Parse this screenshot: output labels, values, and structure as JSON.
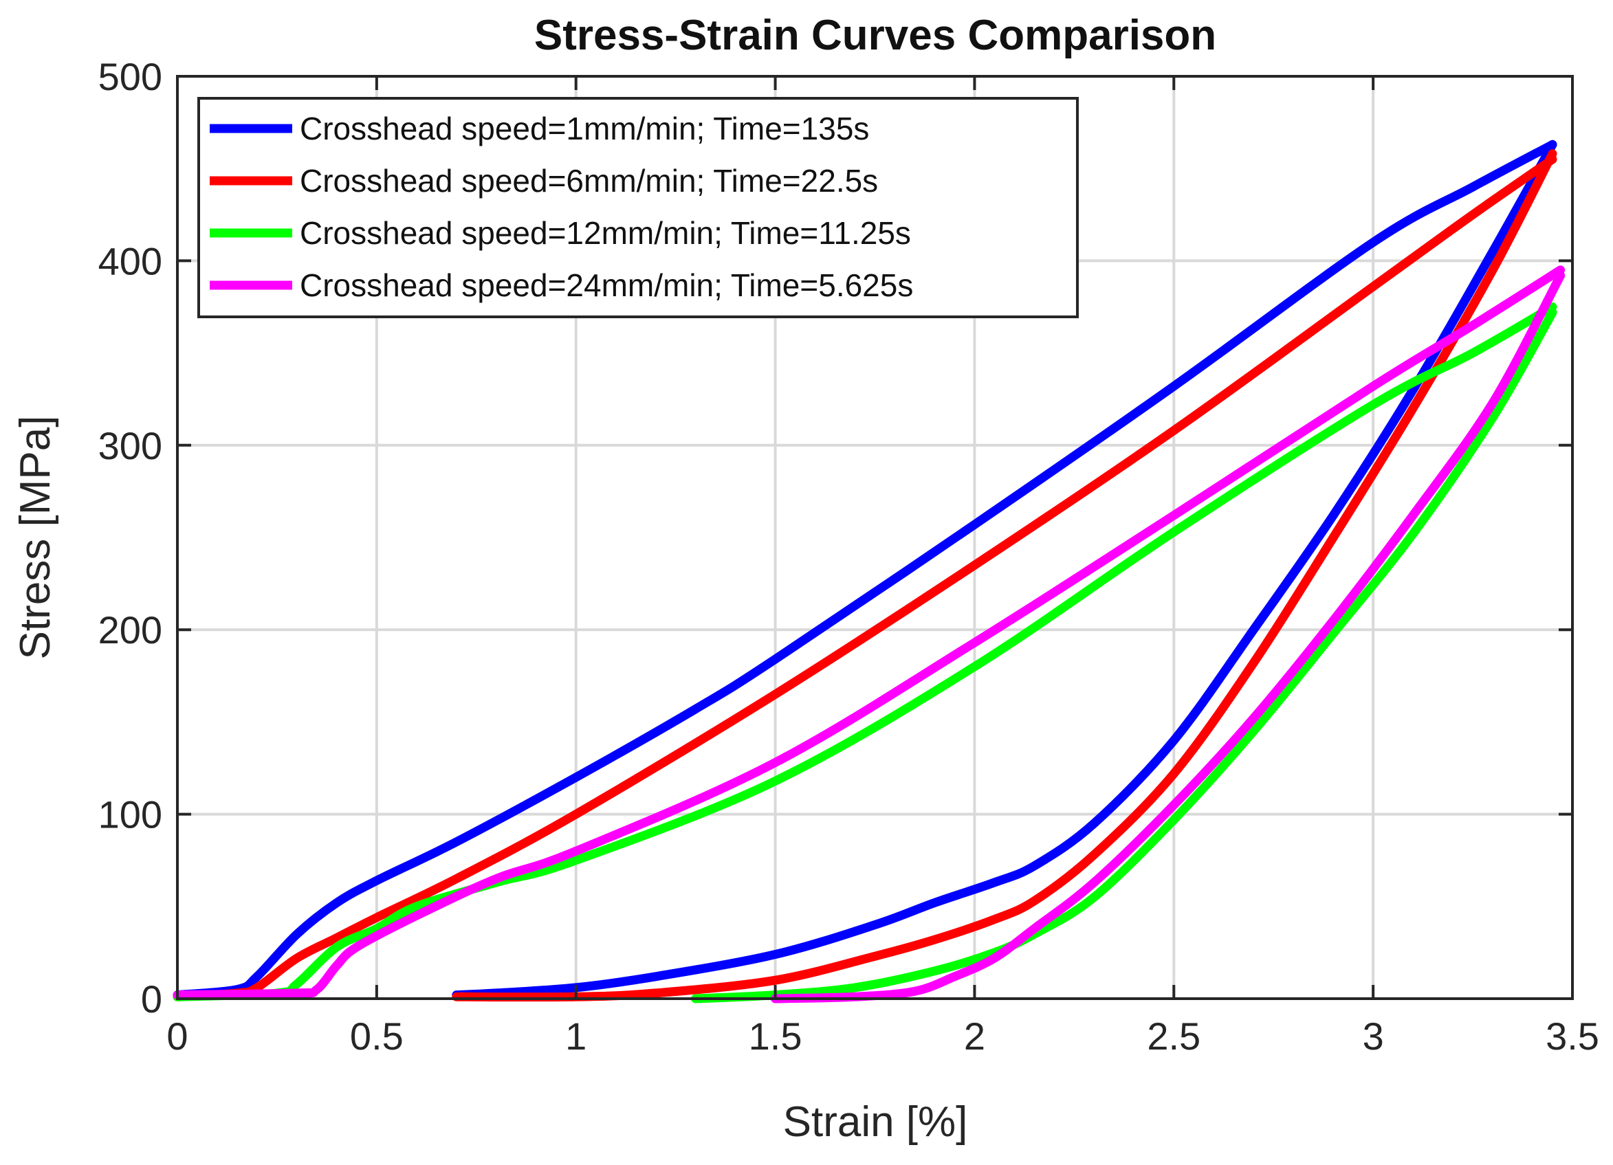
{
  "chart_data": {
    "type": "line",
    "title": "Stress-Strain Curves Comparison",
    "xlabel": "Strain [%]",
    "ylabel": "Stress [MPa]",
    "xlim": [
      0,
      3.5
    ],
    "ylim": [
      0,
      500
    ],
    "xticks": [
      0,
      0.5,
      1,
      1.5,
      2,
      2.5,
      3,
      3.5
    ],
    "xtick_labels": [
      "0",
      "0.5",
      "1",
      "1.5",
      "2",
      "2.5",
      "3",
      "3.5"
    ],
    "yticks": [
      0,
      100,
      200,
      300,
      400,
      500
    ],
    "ytick_labels": [
      "0",
      "100",
      "200",
      "300",
      "400",
      "500"
    ],
    "grid": true,
    "legend_position": "top-left",
    "series": [
      {
        "name": "Crosshead speed=1mm/min; Time=135s",
        "color": "#0000ff",
        "loading": [
          [
            0,
            2
          ],
          [
            0.15,
            5
          ],
          [
            0.2,
            12
          ],
          [
            0.3,
            35
          ],
          [
            0.4,
            52
          ],
          [
            0.5,
            64
          ],
          [
            0.7,
            85
          ],
          [
            1,
            120
          ],
          [
            1.3,
            157
          ],
          [
            1.5,
            184
          ],
          [
            2,
            257
          ],
          [
            2.5,
            332
          ],
          [
            3,
            410
          ],
          [
            3.25,
            440
          ],
          [
            3.45,
            463
          ]
        ],
        "unloading": [
          [
            3.45,
            463
          ],
          [
            3.3,
            405
          ],
          [
            3.1,
            330
          ],
          [
            2.9,
            262
          ],
          [
            2.7,
            200
          ],
          [
            2.5,
            140
          ],
          [
            2.3,
            95
          ],
          [
            2.15,
            72
          ],
          [
            2.05,
            63
          ],
          [
            1.9,
            52
          ],
          [
            1.75,
            40
          ],
          [
            1.5,
            24
          ],
          [
            1.2,
            12
          ],
          [
            1,
            6
          ],
          [
            0.8,
            3
          ],
          [
            0.7,
            2
          ]
        ]
      },
      {
        "name": "Crosshead speed=6mm/min; Time=22.5s",
        "color": "#ff0000",
        "loading": [
          [
            0,
            1
          ],
          [
            0.15,
            3
          ],
          [
            0.2,
            6
          ],
          [
            0.3,
            22
          ],
          [
            0.4,
            33
          ],
          [
            0.5,
            44
          ],
          [
            0.7,
            65
          ],
          [
            1,
            100
          ],
          [
            1.5,
            165
          ],
          [
            2,
            235
          ],
          [
            2.5,
            308
          ],
          [
            3,
            386
          ],
          [
            3.25,
            425
          ],
          [
            3.45,
            455
          ]
        ],
        "unloading": [
          [
            3.45,
            458
          ],
          [
            3.3,
            395
          ],
          [
            3.1,
            320
          ],
          [
            2.9,
            250
          ],
          [
            2.7,
            182
          ],
          [
            2.5,
            122
          ],
          [
            2.3,
            78
          ],
          [
            2.15,
            53
          ],
          [
            2.05,
            43
          ],
          [
            1.9,
            32
          ],
          [
            1.75,
            23
          ],
          [
            1.5,
            10
          ],
          [
            1.2,
            3
          ],
          [
            1,
            1
          ],
          [
            0.7,
            1
          ]
        ]
      },
      {
        "name": "Crosshead speed=12mm/min; Time=11.25s",
        "color": "#00ff00",
        "loading": [
          [
            0,
            1
          ],
          [
            0.25,
            3
          ],
          [
            0.3,
            8
          ],
          [
            0.4,
            28
          ],
          [
            0.5,
            38
          ],
          [
            0.6,
            50
          ],
          [
            0.8,
            63
          ],
          [
            1,
            75
          ],
          [
            1.5,
            118
          ],
          [
            2,
            180
          ],
          [
            2.5,
            253
          ],
          [
            3,
            322
          ],
          [
            3.25,
            350
          ],
          [
            3.45,
            375
          ]
        ],
        "unloading": [
          [
            3.45,
            372
          ],
          [
            3.3,
            315
          ],
          [
            3.1,
            252
          ],
          [
            2.9,
            198
          ],
          [
            2.7,
            145
          ],
          [
            2.5,
            97
          ],
          [
            2.3,
            55
          ],
          [
            2.15,
            35
          ],
          [
            2.05,
            25
          ],
          [
            1.9,
            15
          ],
          [
            1.7,
            6
          ],
          [
            1.5,
            2
          ],
          [
            1.3,
            0
          ]
        ]
      },
      {
        "name": "Crosshead speed=24mm/min; Time=5.625s",
        "color": "#ff00ff",
        "loading": [
          [
            0,
            2
          ],
          [
            0.3,
            3
          ],
          [
            0.35,
            5
          ],
          [
            0.4,
            18
          ],
          [
            0.45,
            28
          ],
          [
            0.6,
            45
          ],
          [
            0.8,
            65
          ],
          [
            1,
            80
          ],
          [
            1.5,
            128
          ],
          [
            2,
            193
          ],
          [
            2.5,
            262
          ],
          [
            3,
            332
          ],
          [
            3.25,
            365
          ],
          [
            3.47,
            395
          ]
        ],
        "unloading": [
          [
            3.47,
            392
          ],
          [
            3.3,
            323
          ],
          [
            3.1,
            262
          ],
          [
            2.9,
            205
          ],
          [
            2.7,
            152
          ],
          [
            2.5,
            105
          ],
          [
            2.3,
            63
          ],
          [
            2.15,
            38
          ],
          [
            2.05,
            22
          ],
          [
            1.95,
            12
          ],
          [
            1.85,
            4
          ],
          [
            1.7,
            1
          ],
          [
            1.5,
            0
          ]
        ]
      }
    ]
  }
}
